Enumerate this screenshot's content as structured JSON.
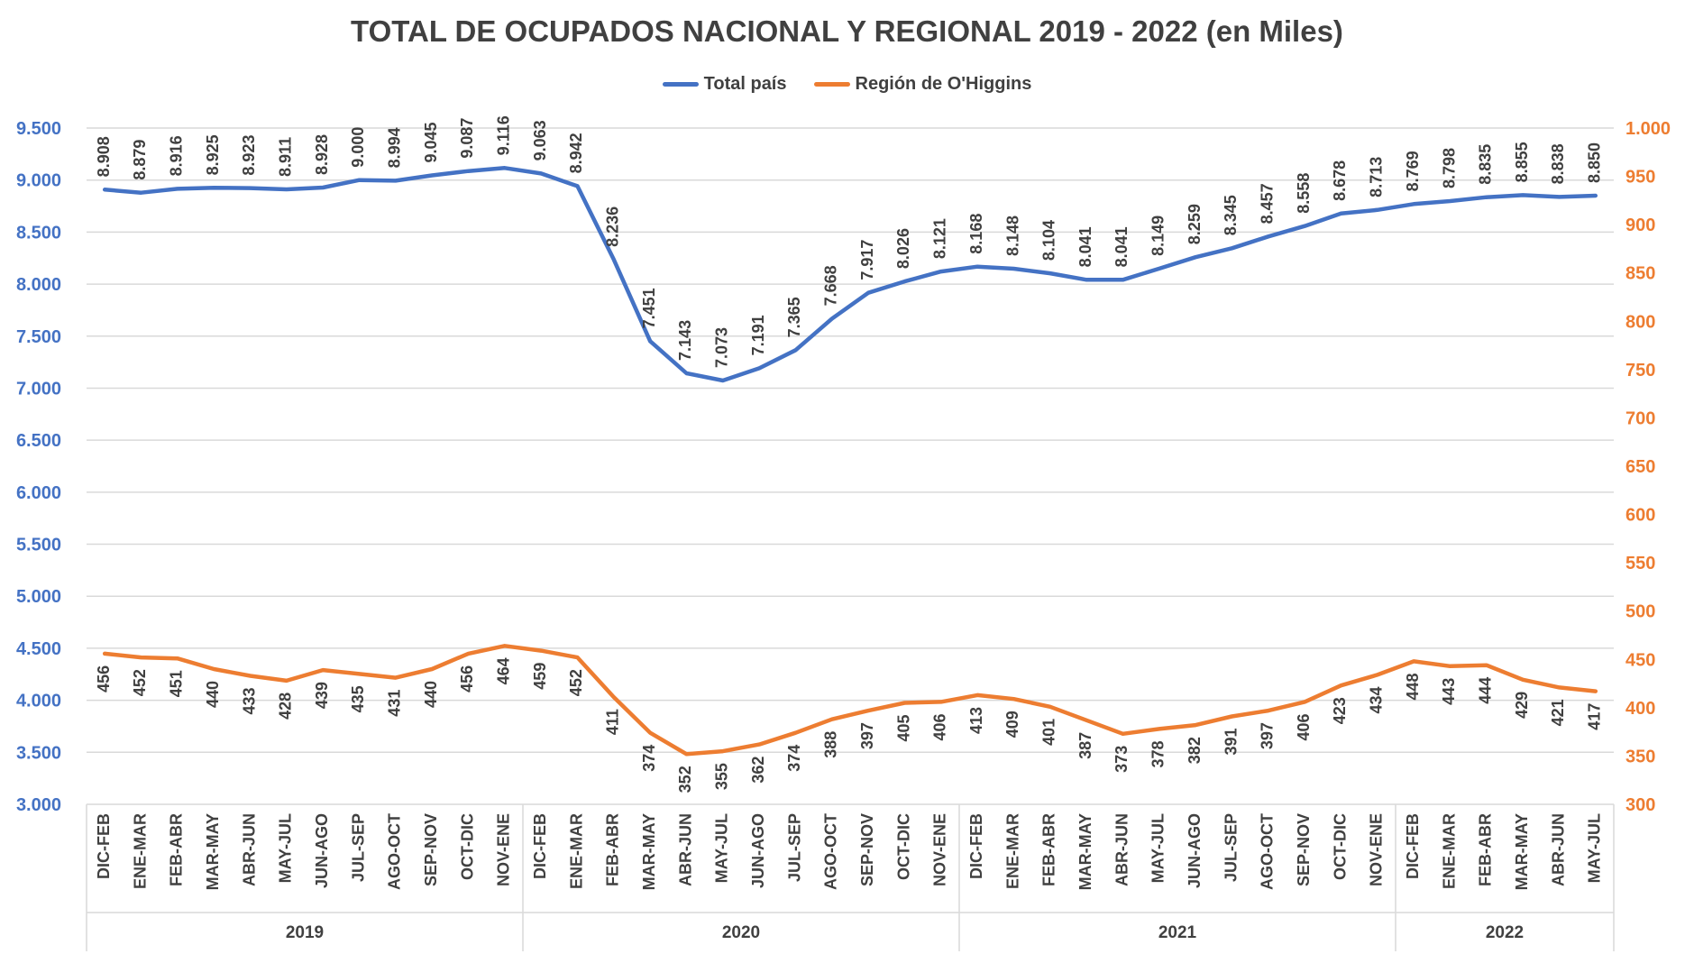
{
  "chart_data": {
    "type": "line",
    "title": "TOTAL DE OCUPADOS NACIONAL Y REGIONAL 2019 - 2022 (en Miles)",
    "categories": [
      "DIC-FEB",
      "ENE-MAR",
      "FEB-ABR",
      "MAR-MAY",
      "ABR-JUN",
      "MAY-JUL",
      "JUN-AGO",
      "JUL-SEP",
      "AGO-OCT",
      "SEP-NOV",
      "OCT-DIC",
      "NOV-ENE",
      "DIC-FEB",
      "ENE-MAR",
      "FEB-ABR",
      "MAR-MAY",
      "ABR-JUN",
      "MAY-JUL",
      "JUN-AGO",
      "JUL-SEP",
      "AGO-OCT",
      "SEP-NOV",
      "OCT-DIC",
      "NOV-ENE",
      "DIC-FEB",
      "ENE-MAR",
      "FEB-ABR",
      "MAR-MAY",
      "ABR-JUN",
      "MAY-JUL",
      "JUN-AGO",
      "JUL-SEP",
      "AGO-OCT",
      "SEP-NOV",
      "OCT-DIC",
      "NOV-ENE",
      "DIC-FEB",
      "ENE-MAR",
      "FEB-ABR",
      "MAR-MAY",
      "ABR-JUN",
      "MAY-JUL"
    ],
    "groups": [
      {
        "label": "2019",
        "count": 12
      },
      {
        "label": "2020",
        "count": 12
      },
      {
        "label": "2021",
        "count": 12
      },
      {
        "label": "2022",
        "count": 6
      }
    ],
    "series": [
      {
        "name": "Total país",
        "axis": "left",
        "color": "#4472C4",
        "values": [
          8908,
          8879,
          8916,
          8925,
          8923,
          8911,
          8928,
          9000,
          8994,
          9045,
          9087,
          9116,
          9063,
          8942,
          8236,
          7451,
          7143,
          7073,
          7191,
          7365,
          7668,
          7917,
          8026,
          8121,
          8168,
          8148,
          8104,
          8041,
          8041,
          8149,
          8259,
          8345,
          8457,
          8558,
          8678,
          8713,
          8769,
          8798,
          8835,
          8855,
          8838,
          8850
        ],
        "labels": [
          "8.908",
          "8.879",
          "8.916",
          "8.925",
          "8.923",
          "8.911",
          "8.928",
          "9.000",
          "8.994",
          "9.045",
          "9.087",
          "9.116",
          "9.063",
          "8.942",
          "8.236",
          "7.451",
          "7.143",
          "7.073",
          "7.191",
          "7.365",
          "7.668",
          "7.917",
          "8.026",
          "8.121",
          "8.168",
          "8.148",
          "8.104",
          "8.041",
          "8.041",
          "8.149",
          "8.259",
          "8.345",
          "8.457",
          "8.558",
          "8.678",
          "8.713",
          "8.769",
          "8.798",
          "8.835",
          "8.855",
          "8.838",
          "8.850"
        ]
      },
      {
        "name": "Región de O'Higgins",
        "axis": "right",
        "color": "#ED7D31",
        "values": [
          456,
          452,
          451,
          440,
          433,
          428,
          439,
          435,
          431,
          440,
          456,
          464,
          459,
          452,
          411,
          374,
          352,
          355,
          362,
          374,
          388,
          397,
          405,
          406,
          413,
          409,
          401,
          387,
          373,
          378,
          382,
          391,
          397,
          406,
          423,
          434,
          448,
          443,
          444,
          429,
          421,
          417
        ],
        "labels": [
          "456",
          "452",
          "451",
          "440",
          "433",
          "428",
          "439",
          "435",
          "431",
          "440",
          "456",
          "464",
          "459",
          "452",
          "411",
          "374",
          "352",
          "355",
          "362",
          "374",
          "388",
          "397",
          "405",
          "406",
          "413",
          "409",
          "401",
          "387",
          "373",
          "378",
          "382",
          "391",
          "397",
          "406",
          "423",
          "434",
          "448",
          "443",
          "444",
          "429",
          "421",
          "417"
        ]
      }
    ],
    "y_left": {
      "min": 3000,
      "max": 9500,
      "step": 500,
      "color": "#4472C4",
      "tick_labels": [
        "3.000",
        "3.500",
        "4.000",
        "4.500",
        "5.000",
        "5.500",
        "6.000",
        "6.500",
        "7.000",
        "7.500",
        "8.000",
        "8.500",
        "9.000",
        "9.500"
      ]
    },
    "y_right": {
      "min": 300,
      "max": 1000,
      "step": 50,
      "color": "#ED7D31",
      "tick_labels": [
        "300",
        "350",
        "400",
        "450",
        "500",
        "550",
        "600",
        "650",
        "700",
        "750",
        "800",
        "850",
        "900",
        "950",
        "1.000"
      ]
    },
    "grid": true,
    "legend_position": "top-center"
  }
}
